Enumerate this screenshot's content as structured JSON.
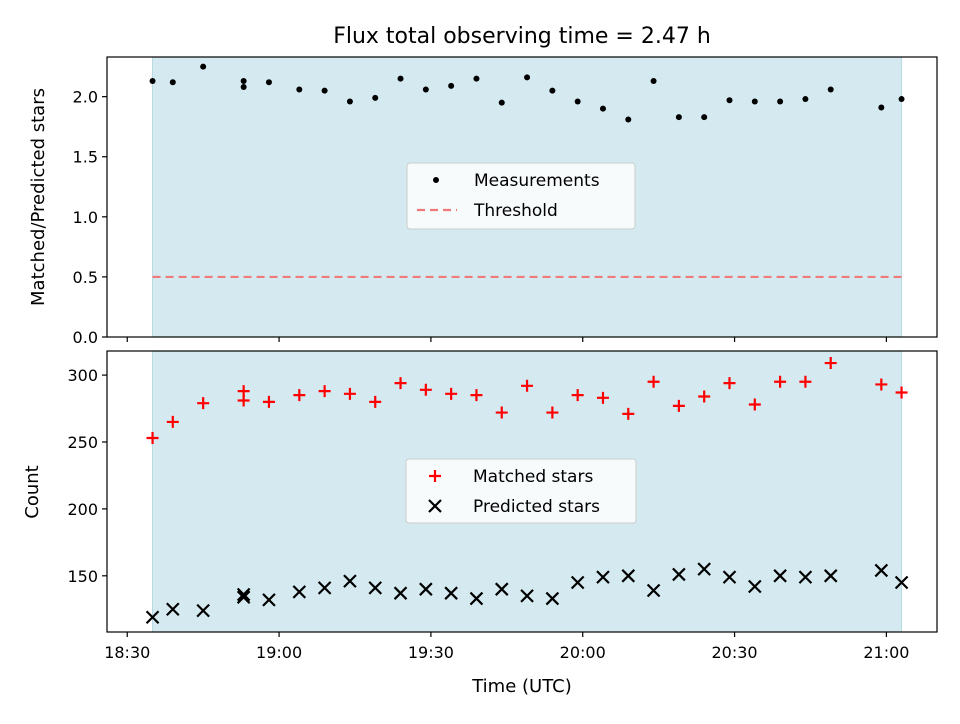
{
  "title": "Flux total observing time = 2.47 h",
  "colors": {
    "shade": "#d4eaf0",
    "shade_edge": "#b8d9e3",
    "measurement": "#000000",
    "threshold": "#f07a7a",
    "matched": "#ff0000",
    "predicted": "#000000"
  },
  "chart_data": [
    {
      "type": "scatter",
      "ylabel": "Matched/Predicted stars",
      "ylim": [
        0,
        2.33
      ],
      "yticks": [
        0.0,
        0.5,
        1.0,
        1.5,
        2.0
      ],
      "ytick_labels": [
        "0.0",
        "0.5",
        "1.0",
        "1.5",
        "2.0"
      ],
      "xlim": [
        "18:26",
        "21:10"
      ],
      "shaded_span": [
        "18:35",
        "21:03"
      ],
      "legend": {
        "placement": "center",
        "entries": [
          "Measurements",
          "Threshold"
        ]
      },
      "threshold": {
        "name": "Threshold",
        "value": 0.5,
        "x_range": [
          "18:35",
          "21:03"
        ]
      },
      "series": [
        {
          "name": "Measurements",
          "x": [
            "18:35",
            "18:39",
            "18:45",
            "18:53",
            "18:53",
            "18:58",
            "19:04",
            "19:09",
            "19:14",
            "19:19",
            "19:24",
            "19:29",
            "19:34",
            "19:39",
            "19:44",
            "19:49",
            "19:54",
            "19:59",
            "20:04",
            "20:09",
            "20:14",
            "20:19",
            "20:24",
            "20:29",
            "20:34",
            "20:39",
            "20:44",
            "20:49",
            "20:59",
            "21:03"
          ],
          "y": [
            2.13,
            2.12,
            2.25,
            2.08,
            2.13,
            2.12,
            2.06,
            2.05,
            1.96,
            1.99,
            2.15,
            2.06,
            2.09,
            2.15,
            1.95,
            2.16,
            2.05,
            1.96,
            1.9,
            1.81,
            2.13,
            1.83,
            1.83,
            1.97,
            1.96,
            1.96,
            1.98,
            2.06,
            1.91,
            1.98
          ]
        }
      ]
    },
    {
      "type": "scatter",
      "ylabel": "Count",
      "xlabel": "Time (UTC)",
      "ylim": [
        108,
        318
      ],
      "yticks": [
        150,
        200,
        250,
        300
      ],
      "ytick_labels": [
        "150",
        "200",
        "250",
        "300"
      ],
      "xlim": [
        "18:26",
        "21:10"
      ],
      "xticks": [
        "18:30",
        "19:00",
        "19:30",
        "20:00",
        "20:30",
        "21:00"
      ],
      "xtick_labels": [
        "18:30",
        "19:00",
        "19:30",
        "20:00",
        "20:30",
        "21:00"
      ],
      "shaded_span": [
        "18:35",
        "21:03"
      ],
      "legend": {
        "placement": "center",
        "entries": [
          "Matched stars",
          "Predicted stars"
        ]
      },
      "series": [
        {
          "name": "Matched stars",
          "marker": "plus",
          "x": [
            "18:35",
            "18:39",
            "18:45",
            "18:53",
            "18:53",
            "18:58",
            "19:04",
            "19:09",
            "19:14",
            "19:19",
            "19:24",
            "19:29",
            "19:34",
            "19:39",
            "19:44",
            "19:49",
            "19:54",
            "19:59",
            "20:04",
            "20:09",
            "20:14",
            "20:19",
            "20:24",
            "20:29",
            "20:34",
            "20:39",
            "20:44",
            "20:49",
            "20:59",
            "21:03"
          ],
          "y": [
            253,
            265,
            279,
            281,
            288,
            280,
            285,
            288,
            286,
            280,
            294,
            289,
            286,
            285,
            272,
            292,
            272,
            285,
            283,
            271,
            295,
            277,
            284,
            294,
            278,
            295,
            295,
            309,
            293,
            287
          ]
        },
        {
          "name": "Predicted stars",
          "marker": "x",
          "x": [
            "18:35",
            "18:39",
            "18:45",
            "18:53",
            "18:53",
            "18:58",
            "19:04",
            "19:09",
            "19:14",
            "19:19",
            "19:24",
            "19:29",
            "19:34",
            "19:39",
            "19:44",
            "19:49",
            "19:54",
            "19:59",
            "20:04",
            "20:09",
            "20:14",
            "20:19",
            "20:24",
            "20:29",
            "20:34",
            "20:39",
            "20:44",
            "20:49",
            "20:59",
            "21:03"
          ],
          "y": [
            119,
            125,
            124,
            136,
            134,
            132,
            138,
            141,
            146,
            141,
            137,
            140,
            137,
            133,
            140,
            135,
            133,
            145,
            149,
            150,
            139,
            151,
            155,
            149,
            142,
            150,
            149,
            150,
            154,
            145
          ]
        }
      ]
    }
  ]
}
